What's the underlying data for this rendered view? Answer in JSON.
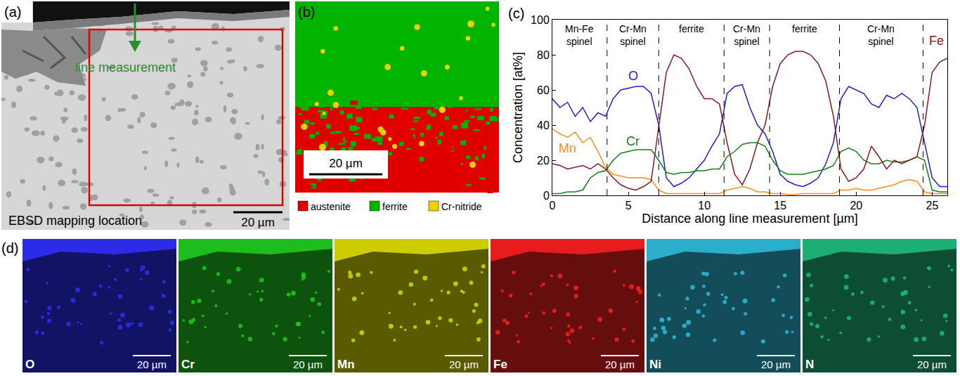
{
  "chart_data": {
    "type": "line",
    "panel_letter": "(c)",
    "xlabel": "Distance along line measurement [µm]",
    "ylabel": "Concentration [at%]",
    "xlim": [
      0,
      26
    ],
    "ylim": [
      0,
      100
    ],
    "xticks": [
      0,
      5,
      10,
      15,
      20,
      25
    ],
    "yticks": [
      0,
      20,
      40,
      60,
      80,
      100
    ],
    "grid": false,
    "x": [
      0,
      0.5,
      1,
      1.5,
      2,
      2.5,
      3,
      3.5,
      4,
      4.5,
      5,
      5.5,
      6,
      6.5,
      7,
      7.5,
      8,
      8.5,
      9,
      9.5,
      10,
      10.5,
      11,
      11.5,
      12,
      12.5,
      13,
      13.5,
      14,
      14.5,
      15,
      15.5,
      16,
      16.5,
      17,
      17.5,
      18,
      18.5,
      19,
      19.5,
      20,
      20.5,
      21,
      21.5,
      22,
      22.5,
      23,
      23.5,
      24,
      24.5,
      25,
      25.5,
      26
    ],
    "series": [
      {
        "name": "O",
        "color": "#1f1fd6",
        "values": [
          55,
          50,
          53,
          45,
          50,
          42,
          47,
          45,
          55,
          60,
          61,
          62,
          62,
          58,
          40,
          10,
          5,
          7,
          10,
          15,
          20,
          28,
          35,
          58,
          62,
          63,
          50,
          40,
          35,
          25,
          12,
          8,
          6,
          5,
          7,
          10,
          18,
          30,
          55,
          62,
          60,
          58,
          52,
          50,
          57,
          55,
          58,
          55,
          50,
          30,
          10,
          5,
          5
        ]
      },
      {
        "name": "Cr",
        "color": "#1a7f1a",
        "values": [
          1,
          1,
          2,
          2,
          3,
          10,
          13,
          14,
          20,
          24,
          25,
          26,
          26,
          26,
          20,
          13,
          12,
          13,
          13,
          14,
          14,
          15,
          15,
          22,
          25,
          29,
          30,
          30,
          28,
          20,
          14,
          12,
          12,
          12,
          13,
          14,
          15,
          17,
          25,
          27,
          25,
          20,
          18,
          18,
          20,
          19,
          19,
          20,
          22,
          20,
          3,
          2,
          2
        ]
      },
      {
        "name": "Mn",
        "color": "#ff8c1a",
        "values": [
          38,
          35,
          33,
          36,
          30,
          33,
          25,
          16,
          12,
          11,
          10,
          10,
          10,
          9,
          3,
          1,
          1,
          1,
          1,
          1,
          1,
          1,
          1,
          3,
          4,
          5,
          4,
          2,
          2,
          1,
          1,
          0.5,
          0.5,
          1,
          1,
          1,
          1,
          1,
          3,
          3,
          4,
          3,
          3,
          4,
          5,
          6,
          8,
          9,
          8,
          2,
          1,
          1,
          1
        ]
      },
      {
        "name": "Fe",
        "color": "#8b1a1a",
        "values": [
          18,
          17,
          15,
          16,
          17,
          15,
          18,
          15,
          10,
          6,
          4,
          3,
          5,
          8,
          40,
          70,
          80,
          78,
          72,
          62,
          55,
          55,
          52,
          30,
          12,
          6,
          15,
          30,
          40,
          62,
          75,
          80,
          82,
          82,
          80,
          75,
          65,
          45,
          15,
          8,
          10,
          15,
          28,
          22,
          15,
          20,
          18,
          20,
          22,
          40,
          70,
          76,
          78
        ]
      }
    ],
    "dividers": [
      3.6,
      7.0,
      11.3,
      14.3,
      18.9,
      24.4
    ],
    "regions": [
      "Mn-Fe spinel",
      "Cr-Mn spinel",
      "ferrite",
      "Cr-Mn spinel",
      "ferrite",
      "Cr-Mn spinel"
    ]
  },
  "panels": {
    "a": {
      "letter": "(a)",
      "arrow_label": "line measurement",
      "box_label": "EBSD mapping location",
      "scale_bar": "20 µm"
    },
    "b": {
      "letter": "(b)",
      "scale_bar": "20 µm",
      "phases": [
        {
          "name": "austenite",
          "color": "#e00000"
        },
        {
          "name": "ferrite",
          "color": "#00b400"
        },
        {
          "name": "Cr-nitride",
          "color": "#f0d000"
        }
      ]
    },
    "d": {
      "letter": "(d)",
      "scale_bar": "20 µm",
      "maps": [
        {
          "element": "O",
          "color": "#3030ff"
        },
        {
          "element": "Cr",
          "color": "#20d020"
        },
        {
          "element": "Mn",
          "color": "#e0e000"
        },
        {
          "element": "Fe",
          "color": "#ff2020"
        },
        {
          "element": "Ni",
          "color": "#30c0e0"
        },
        {
          "element": "N",
          "color": "#20c080"
        }
      ]
    }
  }
}
